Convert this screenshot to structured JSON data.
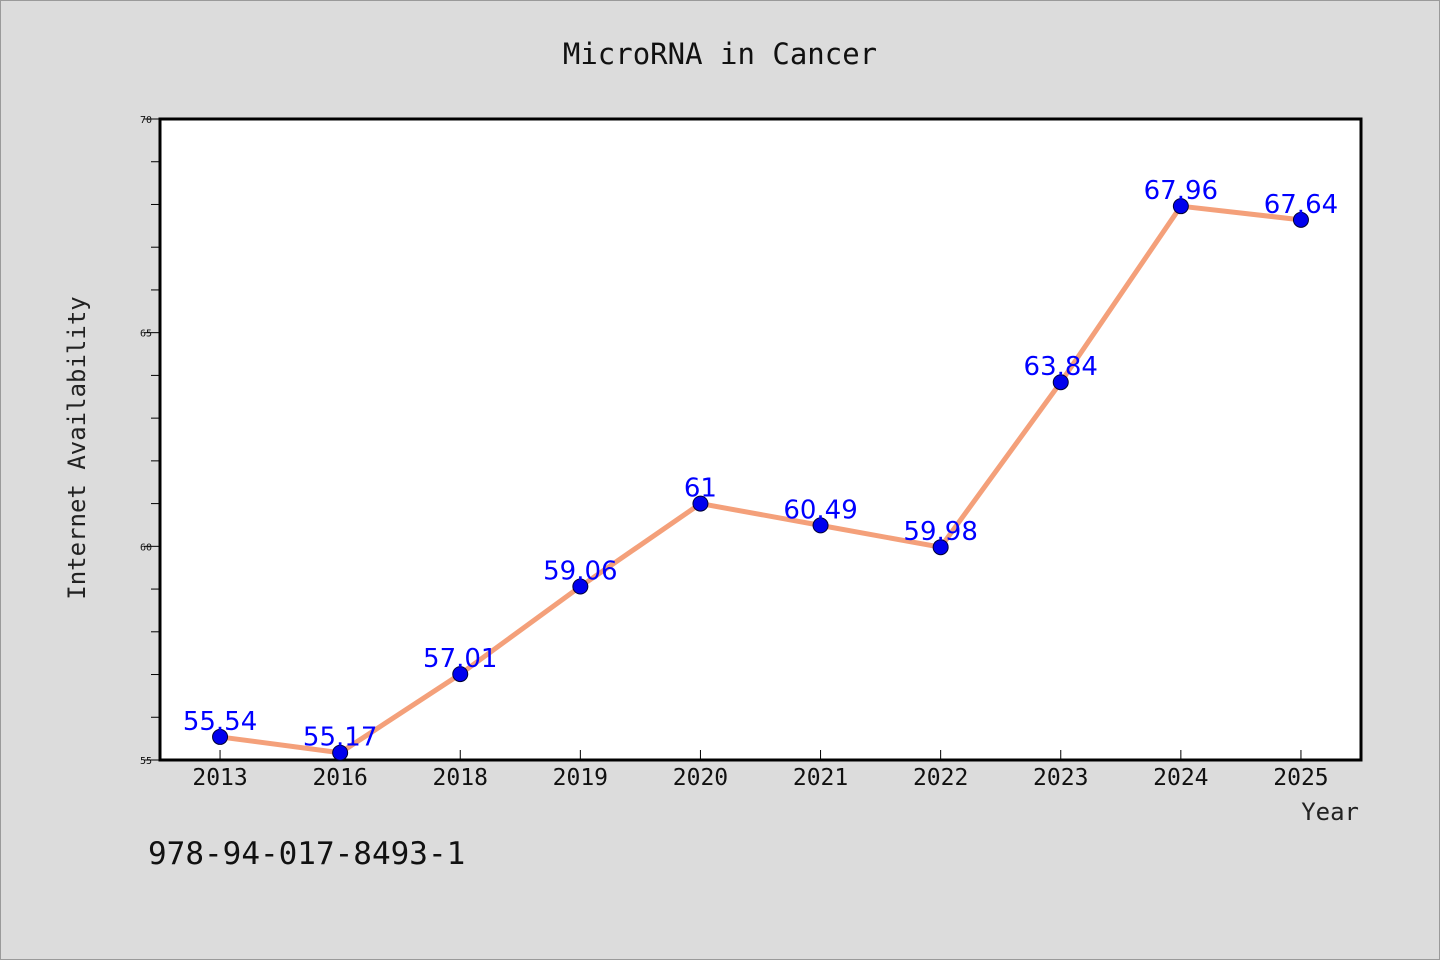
{
  "chart_data": {
    "type": "line",
    "title": "MicroRNA in Cancer",
    "xlabel": "Year",
    "ylabel": "Internet Availability",
    "categories": [
      "2013",
      "2016",
      "2018",
      "2019",
      "2020",
      "2021",
      "2022",
      "2023",
      "2024",
      "2025"
    ],
    "series": [
      {
        "values": [
          55.54,
          55.17,
          57.01,
          59.06,
          61,
          60.49,
          59.98,
          63.84,
          67.96,
          67.64
        ],
        "labels": [
          "55.54",
          "55.17",
          "57.01",
          "59.06",
          "61",
          "60.49",
          "59.98",
          "63.84",
          "67.96",
          "67.64"
        ],
        "line_color": "#f4a07a",
        "marker_color": "#0000ee"
      }
    ],
    "ylim": [
      55,
      70
    ],
    "yticks": [
      "55",
      "60",
      "65",
      "70"
    ],
    "grid": false,
    "legend": "none"
  },
  "footer": {
    "isbn": "978-94-017-8493-1"
  },
  "colors": {
    "background": "#dcdcdc",
    "plot_background": "#ffffff",
    "label_color": "#0000ff"
  }
}
